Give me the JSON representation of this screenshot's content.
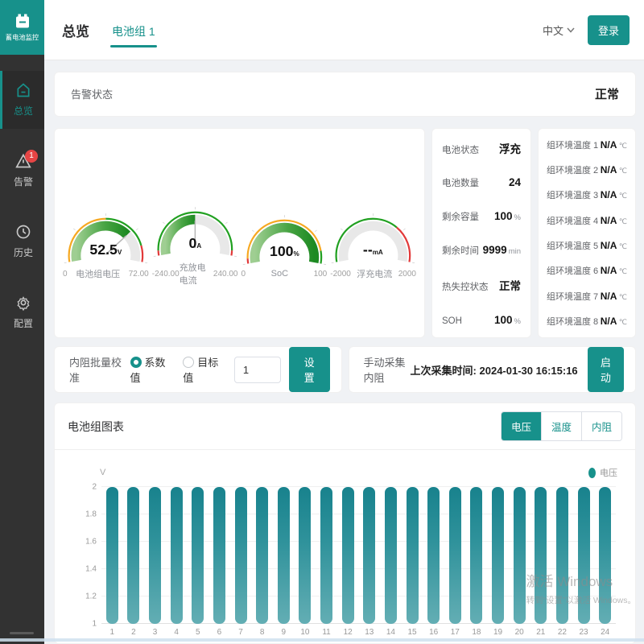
{
  "colors": {
    "accent": "#17918b",
    "alarm_red": "#e64545",
    "bar_top": "#18828d",
    "bar_bottom": "#63aeb4",
    "gauge_green": "#27902c",
    "gauge_orange": "#f6a821",
    "gauge_red": "#e23a3a"
  },
  "app": {
    "logo_title": "蓄电池监控"
  },
  "sidebar": {
    "items": [
      {
        "label": "总览",
        "icon": "home-icon",
        "active": true
      },
      {
        "label": "告警",
        "icon": "alarm-icon",
        "badge": "1"
      },
      {
        "label": "历史",
        "icon": "history-icon"
      },
      {
        "label": "配置",
        "icon": "settings-icon"
      }
    ]
  },
  "header": {
    "title": "总览",
    "tab": "电池组 1",
    "lang": "中文",
    "login_label": "登录"
  },
  "alarm_card": {
    "label": "告警状态",
    "value": "正常"
  },
  "gauges": [
    {
      "value": "52.5",
      "unit": "V",
      "name": "电池组电压",
      "min": "0",
      "max": "72.00",
      "percent": 0.729,
      "segments": [
        [
          0,
          0.5,
          "#f6a821"
        ],
        [
          0.5,
          0.87,
          "#21a021"
        ],
        [
          0.87,
          1,
          "#e23a3a"
        ]
      ]
    },
    {
      "value": "0",
      "unit": "A",
      "name": "充放电电流",
      "min": "-240.00",
      "max": "240.00",
      "percent": 0.5,
      "segments": [
        [
          0,
          0.04,
          "#e23a3a"
        ],
        [
          0.04,
          0.96,
          "#21a021"
        ],
        [
          0.96,
          1,
          "#e23a3a"
        ]
      ]
    },
    {
      "value": "100",
      "unit": "%",
      "name": "SoC",
      "min": "0",
      "max": "100",
      "percent": 1,
      "segments": [
        [
          0,
          0.04,
          "#e23a3a"
        ],
        [
          0.04,
          0.9,
          "#f6a821"
        ],
        [
          0.9,
          1,
          "#21a021"
        ]
      ]
    },
    {
      "value": "--",
      "unit": "mA",
      "name": "浮充电流",
      "min": "-2000",
      "max": "2000",
      "percent": 0,
      "segments": [
        [
          0,
          0.7,
          "#21a021"
        ],
        [
          0.7,
          1,
          "#e23a3a"
        ]
      ]
    }
  ],
  "battery_status": {
    "rows": [
      {
        "label": "电池状态",
        "value": "浮充",
        "unit": ""
      },
      {
        "label": "电池数量",
        "value": "24",
        "unit": ""
      },
      {
        "label": "剩余容量",
        "value": "100",
        "unit": "%"
      },
      {
        "label": "剩余时间",
        "value": "9999",
        "unit": "min"
      },
      {
        "label": "热失控状态",
        "value": "正常",
        "unit": ""
      },
      {
        "label": "SOH",
        "value": "100",
        "unit": "%"
      }
    ]
  },
  "env_temps": {
    "rows": [
      {
        "label": "组环境温度 1",
        "value": "N/A",
        "unit": "℃"
      },
      {
        "label": "组环境温度 2",
        "value": "N/A",
        "unit": "℃"
      },
      {
        "label": "组环境温度 3",
        "value": "N/A",
        "unit": "℃"
      },
      {
        "label": "组环境温度 4",
        "value": "N/A",
        "unit": "℃"
      },
      {
        "label": "组环境温度 5",
        "value": "N/A",
        "unit": "℃"
      },
      {
        "label": "组环境温度 6",
        "value": "N/A",
        "unit": "℃"
      },
      {
        "label": "组环境温度 7",
        "value": "N/A",
        "unit": "℃"
      },
      {
        "label": "组环境温度 8",
        "value": "N/A",
        "unit": "℃"
      }
    ]
  },
  "calibration": {
    "title": "内阻批量校准",
    "radio_coeff": "系数值",
    "radio_target": "目标值",
    "input_value": "1",
    "set_label": "设置"
  },
  "manual_collect": {
    "title": "手动采集内阻",
    "last_time_label": "上次采集时间:",
    "last_time": "2024-01-30 16:15:16",
    "start_label": "启动"
  },
  "chart_card": {
    "title": "电池组图表",
    "tabs": [
      "电压",
      "温度",
      "内阻"
    ],
    "active_tab": "电压",
    "axis_unit": "V",
    "legend": "电压"
  },
  "chart_data": {
    "type": "bar",
    "title": "电池组图表 - 电压",
    "categories": [
      "1",
      "2",
      "3",
      "4",
      "5",
      "6",
      "7",
      "8",
      "9",
      "10",
      "11",
      "12",
      "13",
      "14",
      "15",
      "16",
      "17",
      "18",
      "19",
      "20",
      "21",
      "22",
      "23",
      "24"
    ],
    "values": [
      2,
      2,
      2,
      2,
      2,
      2,
      2,
      2,
      2,
      2,
      2,
      2,
      2,
      2,
      2,
      2,
      2,
      2,
      2,
      2,
      2,
      2,
      2,
      2
    ],
    "xlabel": "",
    "ylabel": "V",
    "ylim": [
      1,
      2
    ],
    "yticks": [
      "1",
      "1.2",
      "1.4",
      "1.6",
      "1.8",
      "2"
    ],
    "grid": true,
    "legend_position": "top-right",
    "series_color": "#17918b"
  },
  "watermark": {
    "line1": "激活 Windows",
    "line2": "转到“设置”以激活 Windows。"
  }
}
